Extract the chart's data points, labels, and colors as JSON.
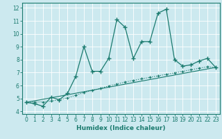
{
  "title": "",
  "xlabel": "Humidex (Indice chaleur)",
  "ylabel": "",
  "xlim": [
    -0.5,
    23.5
  ],
  "ylim": [
    3.8,
    12.4
  ],
  "xticks": [
    0,
    1,
    2,
    3,
    4,
    5,
    6,
    7,
    8,
    9,
    10,
    11,
    12,
    13,
    14,
    15,
    16,
    17,
    18,
    19,
    20,
    21,
    22,
    23
  ],
  "yticks": [
    4,
    5,
    6,
    7,
    8,
    9,
    10,
    11,
    12
  ],
  "bg_color": "#cce9ef",
  "line_color": "#1a7a6e",
  "grid_color": "#ffffff",
  "line1_x": [
    0,
    1,
    2,
    3,
    4,
    5,
    6,
    7,
    8,
    9,
    10,
    11,
    12,
    13,
    14,
    15,
    16,
    17,
    18,
    19,
    20,
    21,
    22,
    23
  ],
  "line1_y": [
    4.7,
    4.6,
    4.4,
    5.1,
    4.9,
    5.4,
    6.7,
    9.0,
    7.1,
    7.1,
    8.1,
    11.1,
    10.5,
    8.1,
    9.4,
    9.4,
    11.6,
    11.9,
    8.0,
    7.5,
    7.6,
    7.9,
    8.1,
    7.4
  ],
  "line2_x": [
    0,
    1,
    2,
    3,
    4,
    5,
    6,
    7,
    8,
    9,
    10,
    11,
    12,
    13,
    14,
    15,
    16,
    17,
    18,
    19,
    20,
    21,
    22,
    23
  ],
  "line2_y": [
    4.7,
    4.72,
    4.74,
    4.8,
    4.9,
    5.05,
    5.25,
    5.45,
    5.62,
    5.79,
    5.97,
    6.12,
    6.27,
    6.4,
    6.52,
    6.63,
    6.75,
    6.87,
    6.98,
    7.1,
    7.22,
    7.34,
    7.45,
    7.4
  ],
  "line3_x": [
    0,
    23
  ],
  "line3_y": [
    4.7,
    7.4
  ]
}
